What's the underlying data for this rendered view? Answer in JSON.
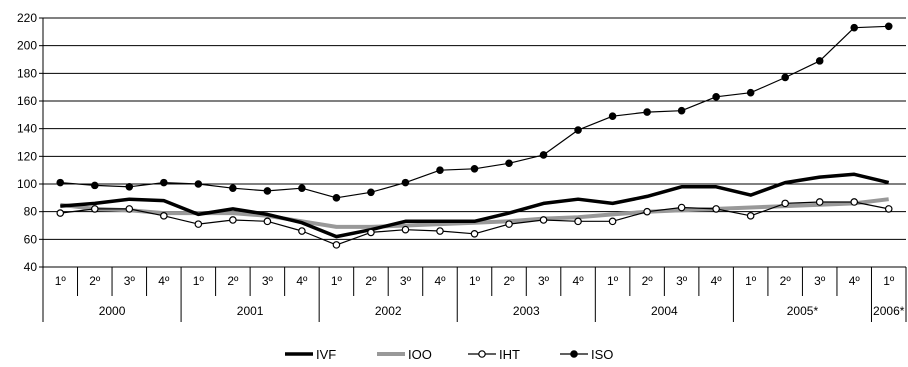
{
  "chart_data": {
    "type": "line",
    "ylim": [
      40,
      220
    ],
    "yticks": [
      40,
      60,
      80,
      100,
      120,
      140,
      160,
      180,
      200,
      220
    ],
    "grid": true,
    "legend_position": "bottom",
    "quarters": [
      "1º",
      "2º",
      "3º",
      "4º",
      "1º",
      "2º",
      "3º",
      "4º",
      "1º",
      "2º",
      "3º",
      "4º",
      "1º",
      "2º",
      "3º",
      "4º",
      "1º",
      "2º",
      "3º",
      "4º",
      "1º",
      "2º",
      "3º",
      "4º",
      "1º"
    ],
    "years": [
      {
        "label": "2000",
        "count": 4
      },
      {
        "label": "2001",
        "count": 4
      },
      {
        "label": "2002",
        "count": 4
      },
      {
        "label": "2003",
        "count": 4
      },
      {
        "label": "2004",
        "count": 4
      },
      {
        "label": "2005*",
        "count": 4
      },
      {
        "label": "2006*",
        "count": 1
      }
    ],
    "series": [
      {
        "name": "IVF",
        "color": "#000000",
        "style": "thick",
        "values": [
          84,
          86,
          89,
          88,
          78,
          82,
          78,
          72,
          62,
          67,
          73,
          73,
          73,
          79,
          86,
          89,
          86,
          91,
          98,
          98,
          92,
          101,
          105,
          107,
          101
        ]
      },
      {
        "name": "IOO",
        "color": "#999999",
        "style": "thick-gray",
        "values": [
          85,
          82,
          81,
          79,
          79,
          79,
          77,
          73,
          69,
          69,
          70,
          71,
          72,
          73,
          75,
          76,
          78,
          80,
          81,
          82,
          83,
          84,
          85,
          86,
          89
        ]
      },
      {
        "name": "IHT",
        "color": "#000000",
        "style": "open-marker",
        "values": [
          79,
          82,
          82,
          77,
          71,
          74,
          73,
          66,
          56,
          65,
          67,
          66,
          64,
          71,
          74,
          73,
          73,
          80,
          83,
          82,
          77,
          86,
          87,
          87,
          82
        ]
      },
      {
        "name": "ISO",
        "color": "#000000",
        "style": "filled-marker",
        "values": [
          101,
          99,
          98,
          101,
          100,
          97,
          95,
          97,
          90,
          94,
          101,
          110,
          111,
          115,
          121,
          139,
          149,
          152,
          153,
          163,
          166,
          177,
          189,
          213,
          214
        ]
      }
    ]
  }
}
